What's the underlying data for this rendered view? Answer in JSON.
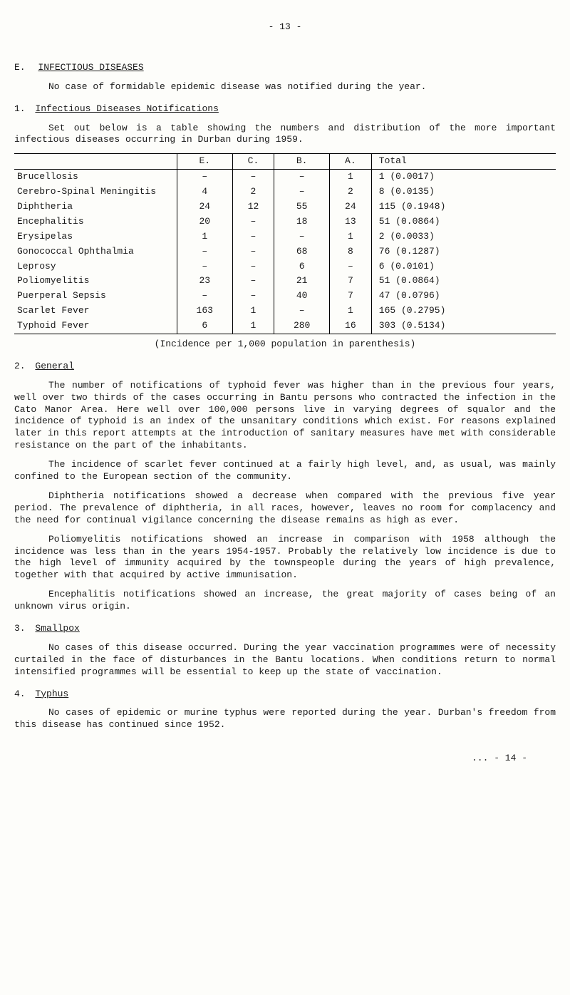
{
  "page_number_label": "- 13 -",
  "main_heading": {
    "num": "E.",
    "text": "INFECTIOUS DISEASES"
  },
  "intro_para": "No case of formidable epidemic disease was notified during the year.",
  "notif_heading": {
    "num": "1.",
    "text": "Infectious Diseases Notifications"
  },
  "notif_para": "Set out below is a table showing the numbers and distribution of the more important infectious diseases occurring in Durban during 1959.",
  "table": {
    "columns": [
      "",
      "E.",
      "C.",
      "B.",
      "A.",
      "Total"
    ],
    "rows": [
      {
        "disease": "Brucellosis",
        "E": "–",
        "C": "–",
        "B": "–",
        "A": "1",
        "Total": "1 (0.0017)"
      },
      {
        "disease": "Cerebro-Spinal Meningitis",
        "E": "4",
        "C": "2",
        "B": "–",
        "A": "2",
        "Total": "8 (0.0135)"
      },
      {
        "disease": "Diphtheria",
        "E": "24",
        "C": "12",
        "B": "55",
        "A": "24",
        "Total": "115 (0.1948)"
      },
      {
        "disease": "Encephalitis",
        "E": "20",
        "C": "–",
        "B": "18",
        "A": "13",
        "Total": "51 (0.0864)"
      },
      {
        "disease": "Erysipelas",
        "E": "1",
        "C": "–",
        "B": "–",
        "A": "1",
        "Total": "2 (0.0033)"
      },
      {
        "disease": "Gonococcal Ophthalmia",
        "E": "–",
        "C": "–",
        "B": "68",
        "A": "8",
        "Total": "76 (0.1287)"
      },
      {
        "disease": "Leprosy",
        "E": "–",
        "C": "–",
        "B": "6",
        "A": "–",
        "Total": "6 (0.0101)"
      },
      {
        "disease": "Poliomyelitis",
        "E": "23",
        "C": "–",
        "B": "21",
        "A": "7",
        "Total": "51 (0.0864)"
      },
      {
        "disease": "Puerperal Sepsis",
        "E": "–",
        "C": "–",
        "B": "40",
        "A": "7",
        "Total": "47 (0.0796)"
      },
      {
        "disease": "Scarlet Fever",
        "E": "163",
        "C": "1",
        "B": "–",
        "A": "1",
        "Total": "165 (0.2795)"
      },
      {
        "disease": "Typhoid Fever",
        "E": "6",
        "C": "1",
        "B": "280",
        "A": "16",
        "Total": "303 (0.5134)"
      }
    ],
    "caption": "(Incidence per 1,000 population in parenthesis)"
  },
  "general_heading": {
    "num": "2.",
    "text": "General"
  },
  "general_p1": "The number of notifications of typhoid fever was higher than in the previous four years, well over two thirds of the cases occurring in Bantu persons who contracted the infection in the Cato Manor Area. Here well over 100,000 persons live in varying degrees of squalor and the incidence of typhoid is an index of the unsanitary conditions which exist. For reasons explained later in this report attempts at the introduction of sanitary measures have met with considerable resistance on the part of the inhabitants.",
  "general_p2": "The incidence of scarlet fever continued at a fairly high level, and, as usual, was mainly confined to the European section of the community.",
  "general_p3": "Diphtheria notifications showed a decrease when compared with the previous five year period. The prevalence of diphtheria, in all races, however, leaves no room for complacency and the need for continual vigilance concerning the disease remains as high as ever.",
  "general_p4": "Poliomyelitis notifications showed an increase in comparison with 1958 although the incidence was less than in the years 1954-1957. Probably the relatively low incidence is due to the high level of immunity acquired by the townspeople during the years of high prevalence, together with that acquired by active immunisation.",
  "general_p5": "Encephalitis notifications showed an increase, the great majority of cases being of an unknown virus origin.",
  "smallpox_heading": {
    "num": "3.",
    "text": "Smallpox"
  },
  "smallpox_p": "No cases of this disease occurred. During the year vaccination programmes were of necessity curtailed in the face of disturbances in the Bantu locations. When conditions return to normal intensified programmes will be essential to keep up the state of vaccination.",
  "typhus_heading": {
    "num": "4.",
    "text": "Typhus"
  },
  "typhus_p": "No cases of epidemic or murine typhus were reported during the year. Durban's freedom from this disease has continued since 1952.",
  "footer_cont": "... - 14 -"
}
